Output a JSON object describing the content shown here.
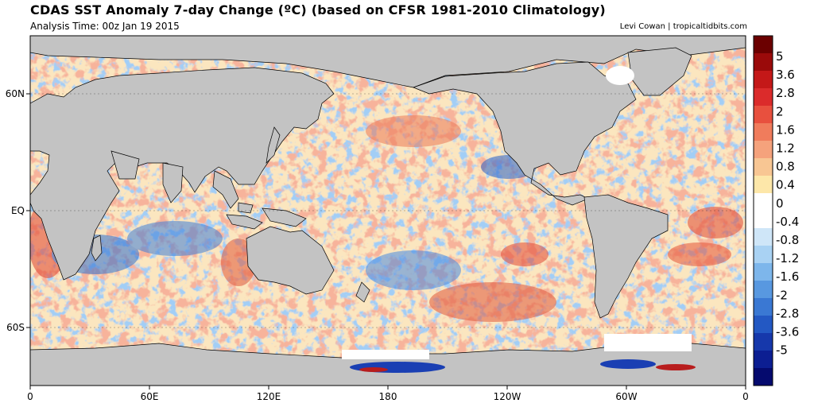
{
  "header": {
    "title": "CDAS SST Anomaly 7-day Change (ºC) (based on CFSR 1981-2010 Climatology)",
    "analysis_time": "Analysis Time: 00z Jan 19 2015",
    "credit": "Levi Cowan | tropicaltidbits.com"
  },
  "map": {
    "lat_labels": [
      "60N",
      "EQ",
      "60S"
    ],
    "lon_labels": [
      "0",
      "60E",
      "120E",
      "180",
      "120W",
      "60W",
      "0"
    ],
    "land_color": "#c3c3c3",
    "ocean_base_color": "#fbe9c4"
  },
  "colorbar": {
    "labels": [
      "5",
      "3.6",
      "2.8",
      "2",
      "1.6",
      "1.2",
      "0.8",
      "0.4",
      "0",
      "-0.4",
      "-0.8",
      "-1.2",
      "-1.6",
      "-2",
      "-2.8",
      "-3.6",
      "-5"
    ],
    "colors": [
      "#6b0000",
      "#9a0a0a",
      "#c41818",
      "#db2b2b",
      "#e8503e",
      "#f07c5c",
      "#f5a27c",
      "#f8c693",
      "#fde7a9",
      "#ffffff",
      "#ffffff",
      "#cfe6f8",
      "#a9d2f3",
      "#7db6eb",
      "#5898e0",
      "#3a78d3",
      "#2358c3",
      "#1638ab",
      "#0c1e92",
      "#050a6e"
    ]
  }
}
